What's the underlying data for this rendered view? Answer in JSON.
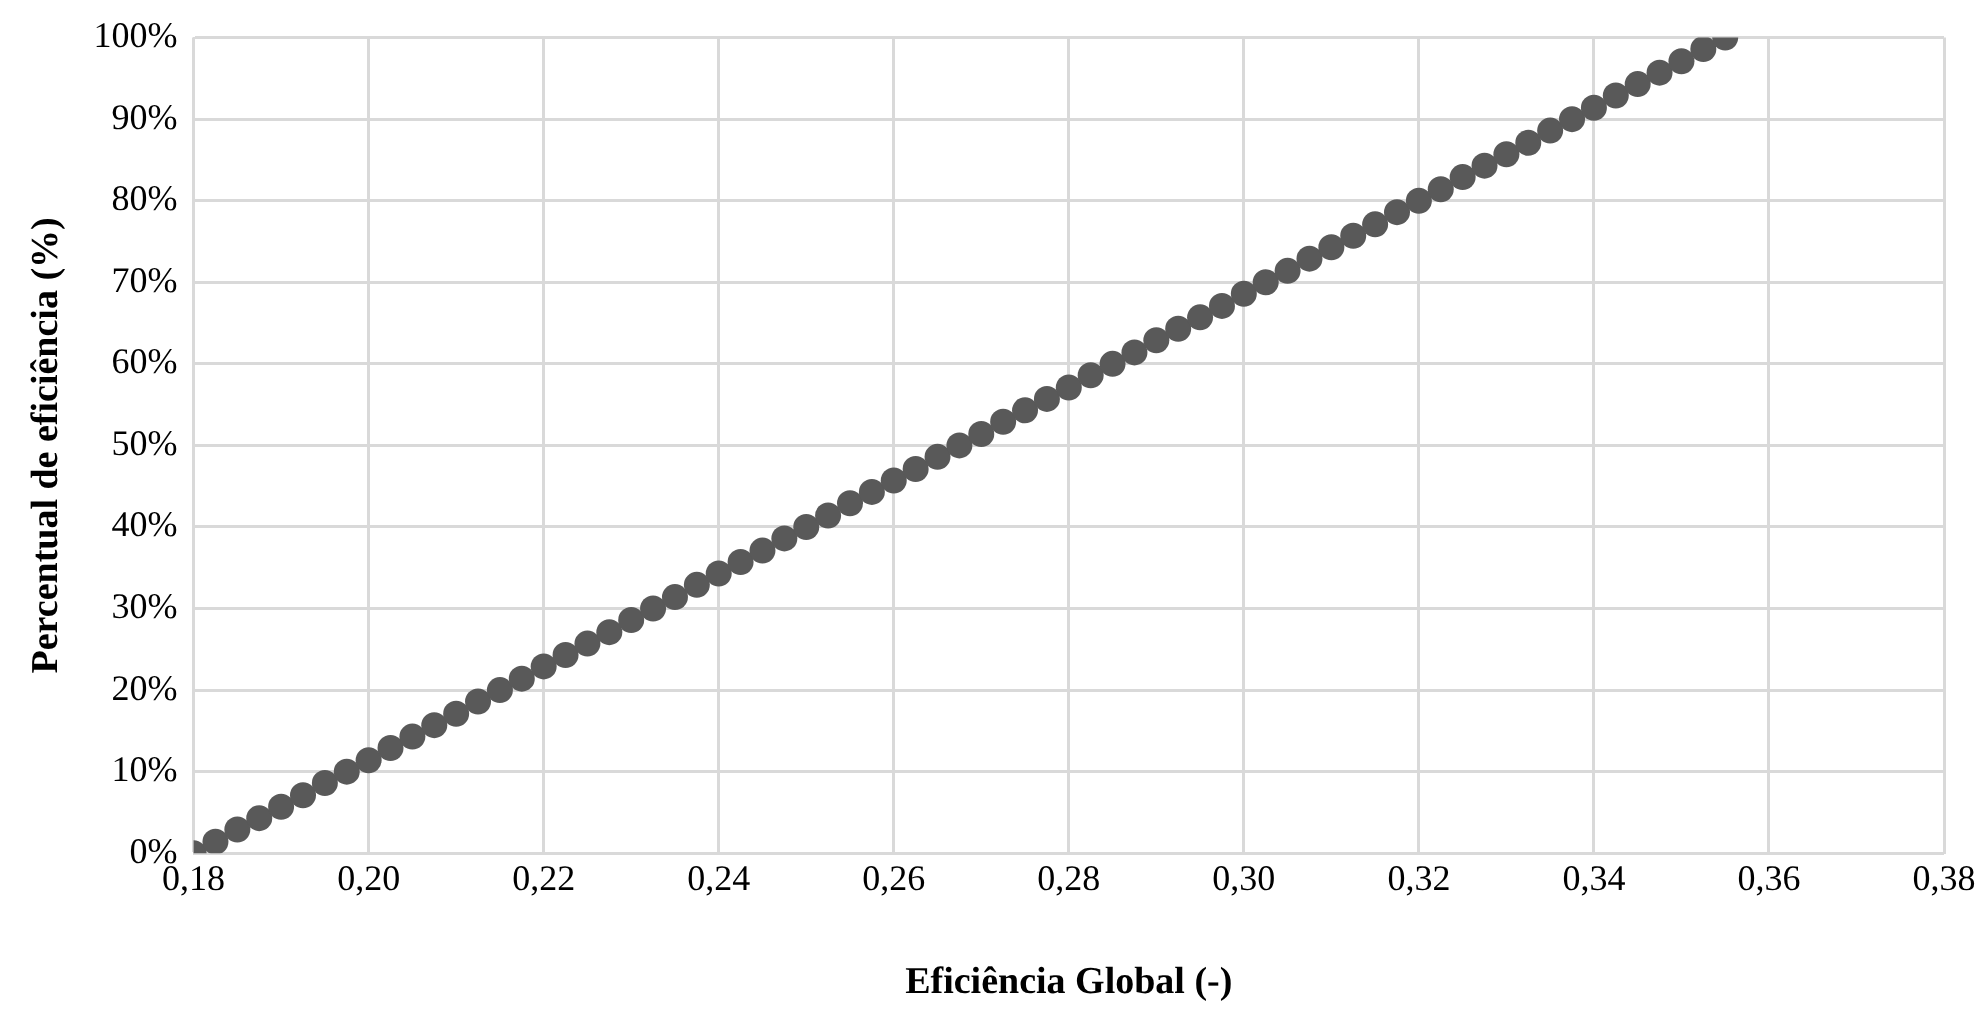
{
  "chart_data": {
    "type": "scatter",
    "xlabel": "Eficiência Global (-)",
    "ylabel": "Percentual de eficiência (%)",
    "x": [
      0.18,
      0.1825,
      0.185,
      0.1875,
      0.19,
      0.1925,
      0.195,
      0.1975,
      0.2,
      0.2025,
      0.205,
      0.2075,
      0.21,
      0.2125,
      0.215,
      0.2175,
      0.22,
      0.2225,
      0.225,
      0.2275,
      0.23,
      0.2325,
      0.235,
      0.2375,
      0.24,
      0.2425,
      0.245,
      0.2475,
      0.25,
      0.2525,
      0.255,
      0.2575,
      0.26,
      0.2625,
      0.265,
      0.2675,
      0.27,
      0.2725,
      0.275,
      0.2775,
      0.28,
      0.2825,
      0.285,
      0.2875,
      0.29,
      0.2925,
      0.295,
      0.2975,
      0.3,
      0.3025,
      0.305,
      0.3075,
      0.31,
      0.3125,
      0.315,
      0.3175,
      0.32,
      0.3225,
      0.325,
      0.3275,
      0.33,
      0.3325,
      0.335,
      0.3375,
      0.34,
      0.3425,
      0.345,
      0.3475,
      0.35,
      0.3525,
      0.355
    ],
    "series": [
      {
        "color": "#595959",
        "values": [
          0,
          1.4,
          2.9,
          4.3,
          5.7,
          7.1,
          8.6,
          10,
          11.4,
          12.9,
          14.3,
          15.7,
          17.1,
          18.6,
          20,
          21.4,
          22.9,
          24.3,
          25.7,
          27.1,
          28.6,
          30,
          31.4,
          32.9,
          34.3,
          35.7,
          37.1,
          38.6,
          40,
          41.4,
          42.9,
          44.3,
          45.7,
          47.1,
          48.6,
          50,
          51.4,
          52.9,
          54.3,
          55.7,
          57.1,
          58.6,
          60,
          61.4,
          62.9,
          64.3,
          65.7,
          67.1,
          68.6,
          70,
          71.4,
          72.9,
          74.3,
          75.7,
          77.1,
          78.6,
          80,
          81.4,
          82.9,
          84.3,
          85.7,
          87.1,
          88.6,
          90,
          91.4,
          92.9,
          94.3,
          95.7,
          97.1,
          98.6,
          100
        ]
      }
    ],
    "xlim": [
      0.18,
      0.38
    ],
    "xticks": [
      {
        "value": 0.18,
        "label": "0,18"
      },
      {
        "value": 0.2,
        "label": "0,20"
      },
      {
        "value": 0.22,
        "label": "0,22"
      },
      {
        "value": 0.24,
        "label": "0,24"
      },
      {
        "value": 0.26,
        "label": "0,26"
      },
      {
        "value": 0.28,
        "label": "0,28"
      },
      {
        "value": 0.3,
        "label": "0,30"
      },
      {
        "value": 0.32,
        "label": "0,32"
      },
      {
        "value": 0.34,
        "label": "0,34"
      },
      {
        "value": 0.36,
        "label": "0,36"
      },
      {
        "value": 0.38,
        "label": "0,38"
      }
    ],
    "ylim": [
      0,
      100
    ],
    "yticks": [
      {
        "value": 0,
        "label": "0%"
      },
      {
        "value": 10,
        "label": "10%"
      },
      {
        "value": 20,
        "label": "20%"
      },
      {
        "value": 30,
        "label": "30%"
      },
      {
        "value": 40,
        "label": "40%"
      },
      {
        "value": 50,
        "label": "50%"
      },
      {
        "value": 60,
        "label": "60%"
      },
      {
        "value": 70,
        "label": "70%"
      },
      {
        "value": 80,
        "label": "80%"
      },
      {
        "value": 90,
        "label": "90%"
      },
      {
        "value": 100,
        "label": "100%"
      }
    ],
    "grid": true,
    "legend": false,
    "marker": "circle"
  }
}
